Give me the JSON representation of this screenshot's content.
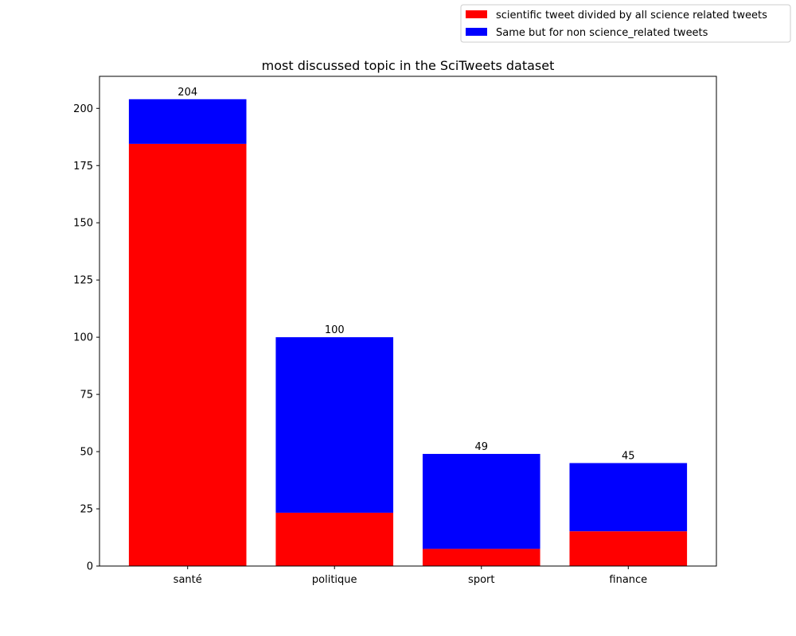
{
  "chart_data": {
    "type": "bar",
    "stacked": true,
    "title": "most discussed topic in the SciTweets dataset",
    "xlabel": "",
    "ylabel": "",
    "categories": [
      "santé",
      "politique",
      "sport",
      "finance"
    ],
    "series": [
      {
        "name": "scientific tweet divided by all science related tweets",
        "color": "#ff0000",
        "values": [
          184.5,
          23.3,
          7.5,
          15.2
        ]
      },
      {
        "name": "Same but for non science_related tweets",
        "color": "#0000ff",
        "values": [
          19.5,
          76.7,
          41.5,
          29.8
        ]
      }
    ],
    "totals": [
      204,
      100,
      49,
      45
    ],
    "ylim": [
      0,
      214
    ],
    "yticks": [
      0,
      25,
      50,
      75,
      100,
      125,
      150,
      175,
      200
    ],
    "grid": false,
    "legend_position": "upper-right-outside"
  }
}
